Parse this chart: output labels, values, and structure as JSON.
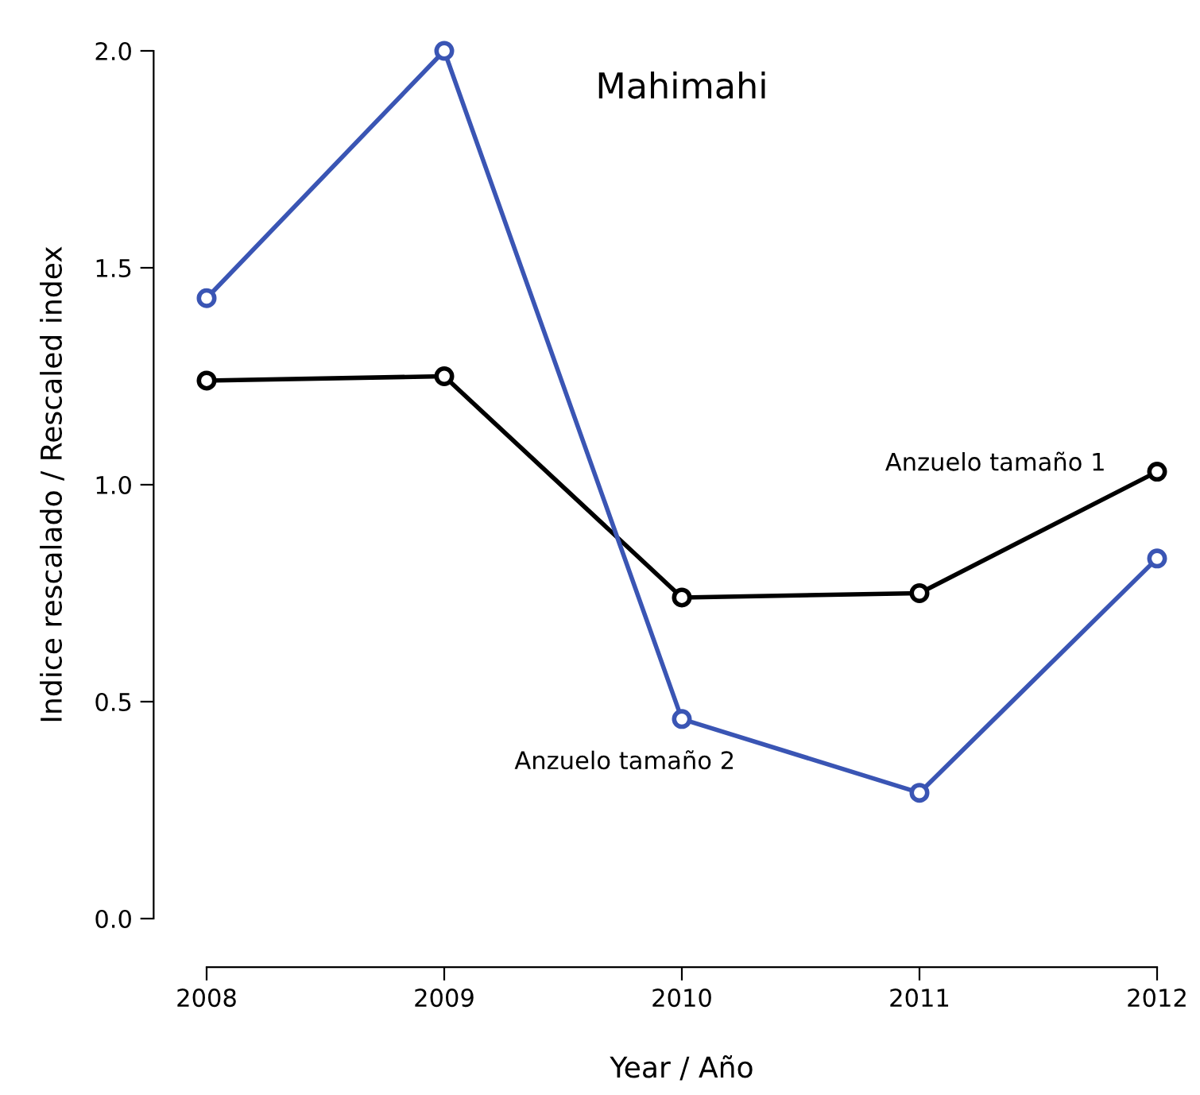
{
  "chart_data": {
    "type": "line",
    "title": "Mahimahi",
    "xlabel": "Year / Año",
    "ylabel": "Indice rescalado / Rescaled index",
    "x": [
      2008,
      2009,
      2010,
      2011,
      2012
    ],
    "series": [
      {
        "color": "#000000",
        "values": [
          1.24,
          1.25,
          0.74,
          0.75,
          1.03
        ]
      },
      {
        "color": "#3a55b4",
        "values": [
          1.43,
          2.0,
          0.46,
          0.29,
          0.83
        ]
      }
    ],
    "annotations": [
      "Anzuelo tamaño 1",
      "Anzuelo tamaño 2"
    ],
    "xlim": [
      2008,
      2012
    ],
    "ylim": [
      0,
      2
    ],
    "xticks": [
      2008,
      2009,
      2010,
      2011,
      2012
    ],
    "yticks": [
      {
        "value": 0,
        "label": "0.0"
      },
      0.5,
      {
        "value": 1,
        "label": "1.0"
      },
      1.5,
      {
        "value": 2,
        "label": "2.0"
      }
    ],
    "marker": "circle",
    "line_style": "solid",
    "grid": false,
    "legend": false
  }
}
